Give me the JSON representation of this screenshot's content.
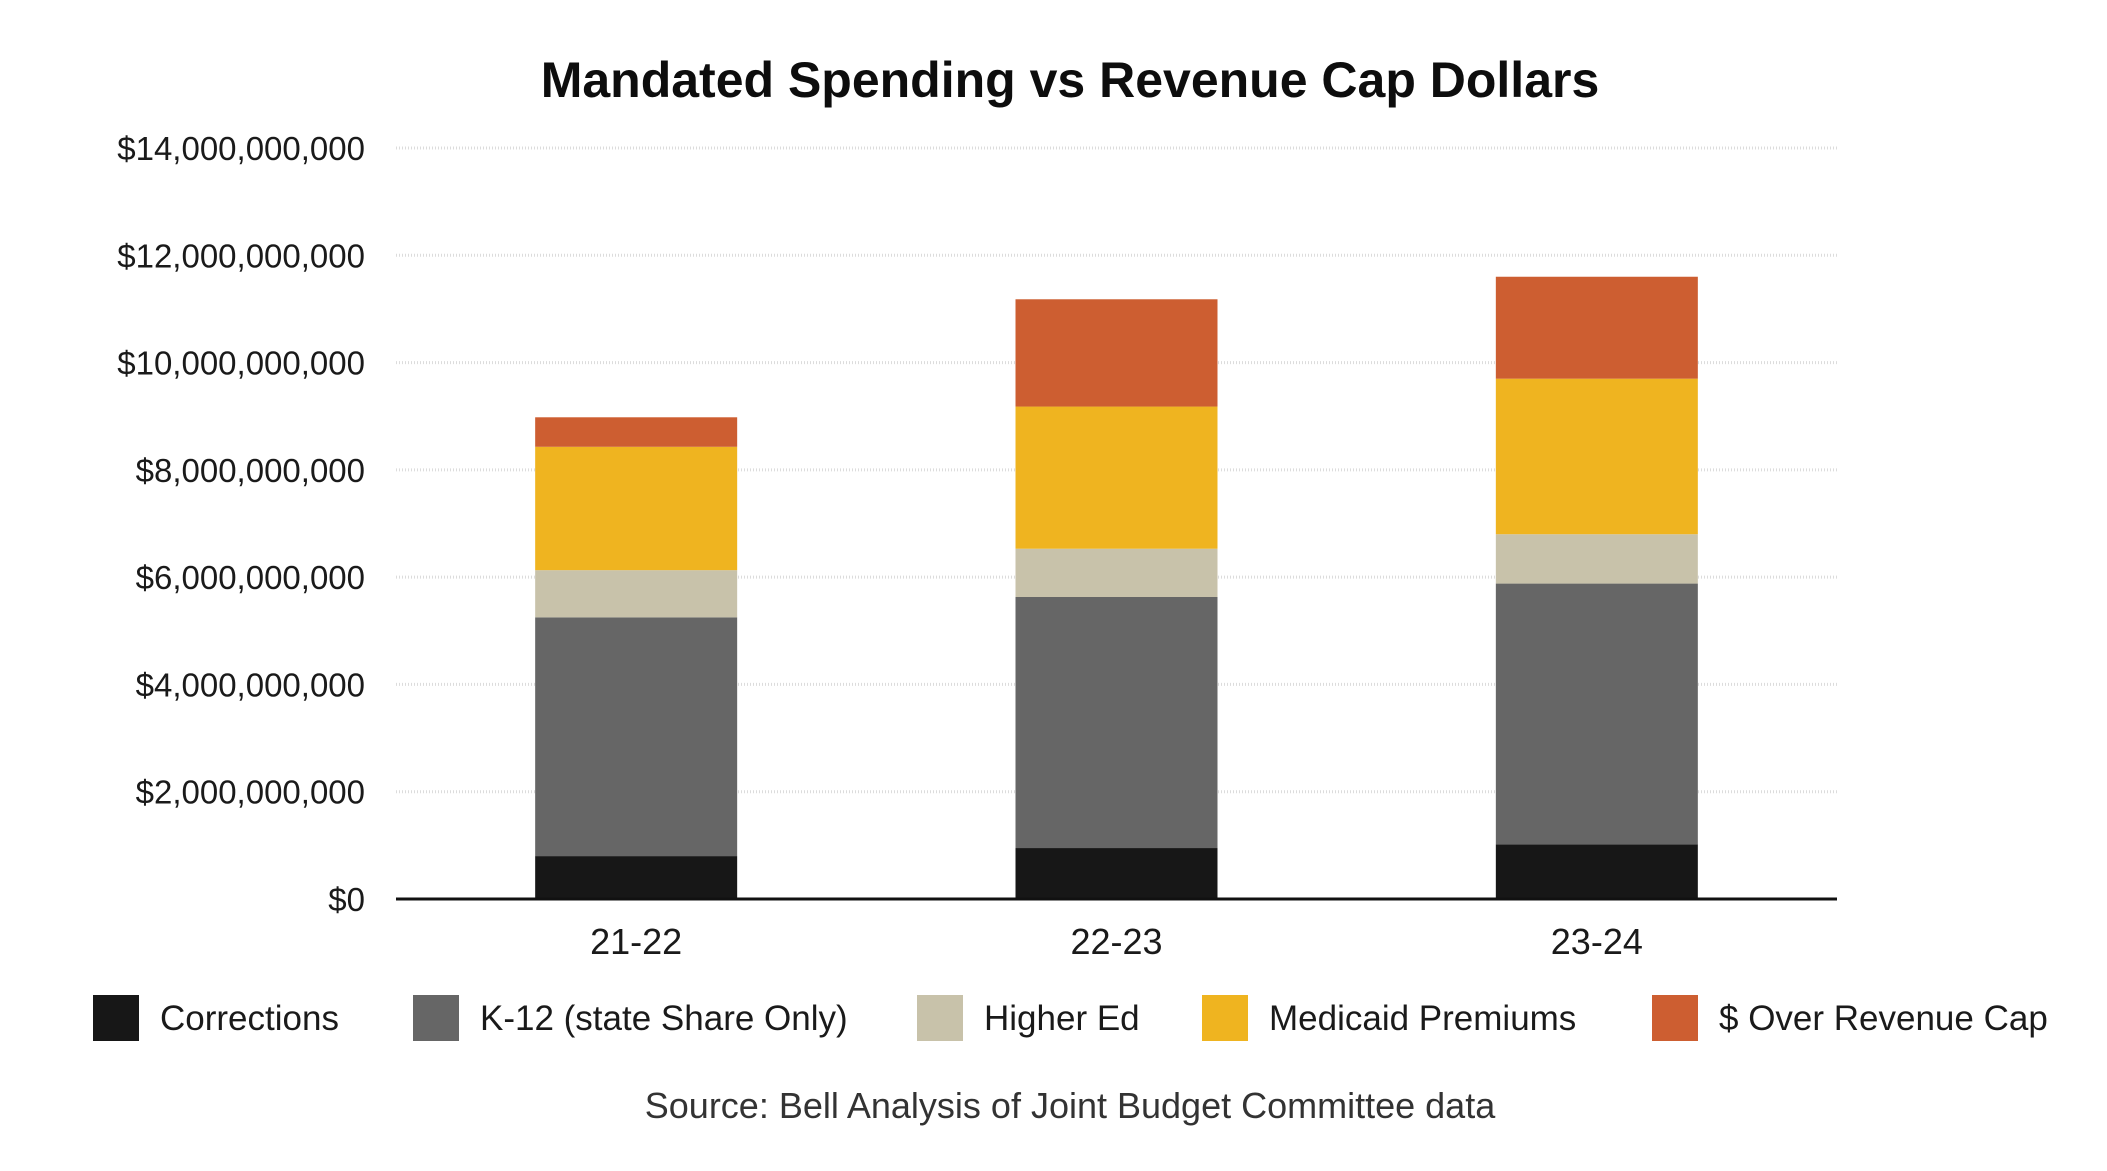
{
  "chart_data": {
    "type": "bar",
    "stacked": true,
    "title": "Mandated Spending vs Revenue Cap Dollars",
    "xlabel": "",
    "ylabel": "",
    "categories": [
      "21-22",
      "22-23",
      "23-24"
    ],
    "ylim": [
      0,
      14000000000
    ],
    "y_ticks": [
      0,
      2000000000,
      4000000000,
      6000000000,
      8000000000,
      10000000000,
      12000000000,
      14000000000
    ],
    "y_tick_labels": [
      "$0",
      "$2,000,000,000",
      "$4,000,000,000",
      "$6,000,000,000",
      "$8,000,000,000",
      "$10,000,000,000",
      "$12,000,000,000",
      "$14,000,000,000"
    ],
    "grid": true,
    "legend_position": "bottom",
    "series": [
      {
        "name": "Corrections",
        "color": "#171717",
        "values": [
          800000000,
          950000000,
          1020000000
        ]
      },
      {
        "name": "K-12 (state Share Only)",
        "color": "#666666",
        "values": [
          4450000000,
          4680000000,
          4860000000
        ]
      },
      {
        "name": "Higher Ed",
        "color": "#c8c2aa",
        "values": [
          880000000,
          900000000,
          920000000
        ]
      },
      {
        "name": "Medicaid Premiums",
        "color": "#efb420",
        "values": [
          2300000000,
          2650000000,
          2900000000
        ]
      },
      {
        "name": "$ Over Revenue Cap",
        "color": "#cd5e31",
        "values": [
          550000000,
          2000000000,
          1900000000
        ]
      }
    ],
    "source": "Source: Bell Analysis of Joint Budget Committee data"
  }
}
